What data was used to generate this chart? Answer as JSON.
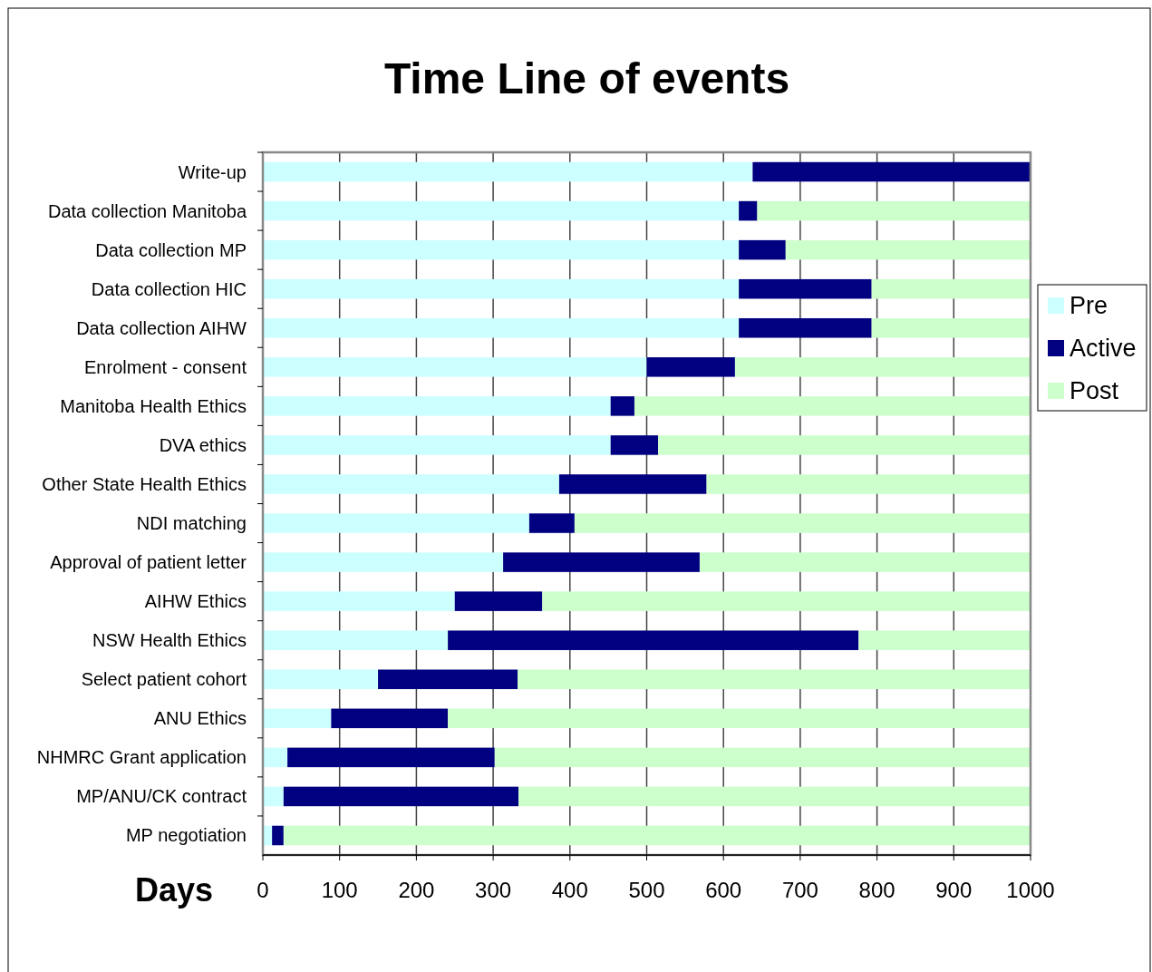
{
  "chart_data": {
    "type": "bar",
    "orientation": "horizontal",
    "stacked": true,
    "title": "Time Line of events",
    "xlabel": "Days",
    "categories": [
      "Write-up",
      "Data collection Manitoba",
      "Data collection MP",
      "Data collection HIC",
      "Data collection AIHW",
      "Enrolment - consent",
      "Manitoba Health Ethics",
      "DVA ethics",
      "Other State Health Ethics",
      "NDI matching",
      "Approval of patient letter",
      "AIHW  Ethics",
      "NSW  Health Ethics",
      "Select patient cohort",
      "ANU Ethics",
      "NHMRC Grant application",
      "MP/ANU/CK contract",
      "MP negotiation"
    ],
    "series": [
      {
        "name": "Pre",
        "color": "#ccffff",
        "values": [
          638,
          620,
          620,
          620,
          620,
          500,
          453,
          453,
          386,
          347,
          313,
          250,
          241,
          150,
          89,
          32,
          27,
          12
        ]
      },
      {
        "name": "Active",
        "color": "#000080",
        "values": [
          362,
          24,
          61,
          173,
          173,
          115,
          31,
          62,
          192,
          59,
          256,
          114,
          535,
          182,
          152,
          270,
          306,
          15
        ]
      },
      {
        "name": "Post",
        "color": "#ccffcc",
        "values": [
          null,
          356,
          319,
          207,
          207,
          385,
          516,
          485,
          422,
          594,
          431,
          636,
          224,
          668,
          759,
          698,
          667,
          973
        ]
      }
    ],
    "xlim": [
      0,
      1000
    ],
    "xticks": [
      0,
      100,
      200,
      300,
      400,
      500,
      600,
      700,
      800,
      900,
      1000
    ],
    "grid": "x",
    "legend": "right"
  }
}
